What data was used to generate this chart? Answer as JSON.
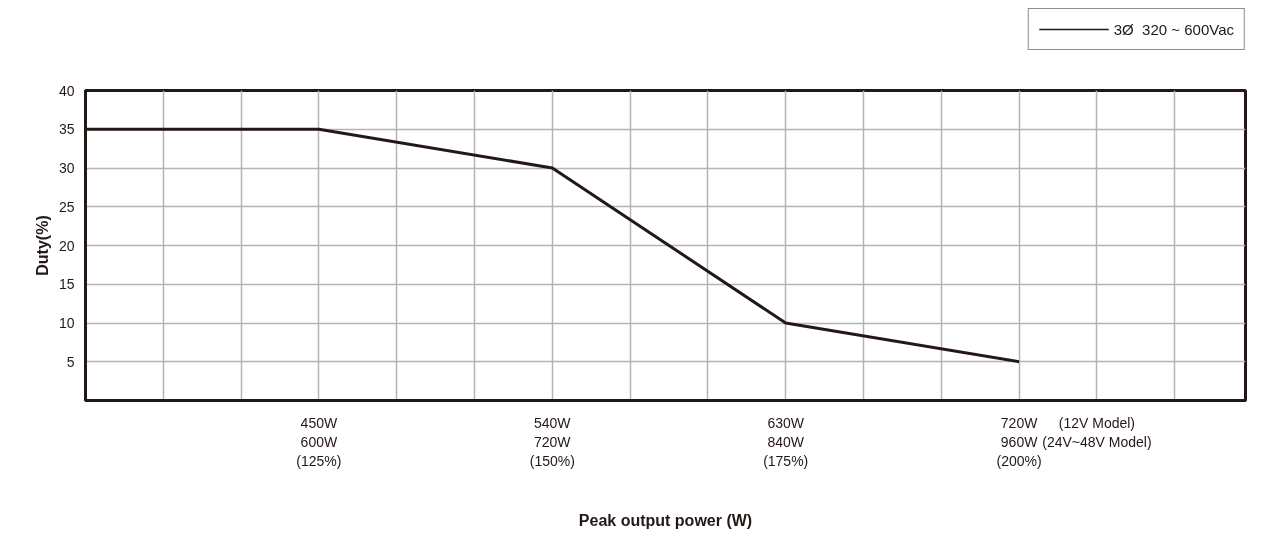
{
  "chart_data": {
    "type": "line",
    "xlabel": "Peak output power (W)",
    "ylabel": "Duty(%)",
    "categories": [
      null,
      "450W\n600W\n(125%)",
      "540W\n720W\n(150%)",
      "630W\n840W\n(175%)",
      "720W\n960W\n(200%)"
    ],
    "series": [
      {
        "name": "3Ø  320 ~ 600Vac",
        "color": "#231815",
        "values": [
          35,
          35,
          30,
          10,
          5
        ]
      }
    ],
    "annotations": [
      "(12V Model)\n(24V~48V Model)"
    ],
    "ylim": [
      0,
      40
    ],
    "yticks": [
      5,
      10,
      15,
      20,
      25,
      30,
      35,
      40
    ],
    "grid": true,
    "legend": "top right",
    "marker": "none",
    "line_style": "solid"
  }
}
